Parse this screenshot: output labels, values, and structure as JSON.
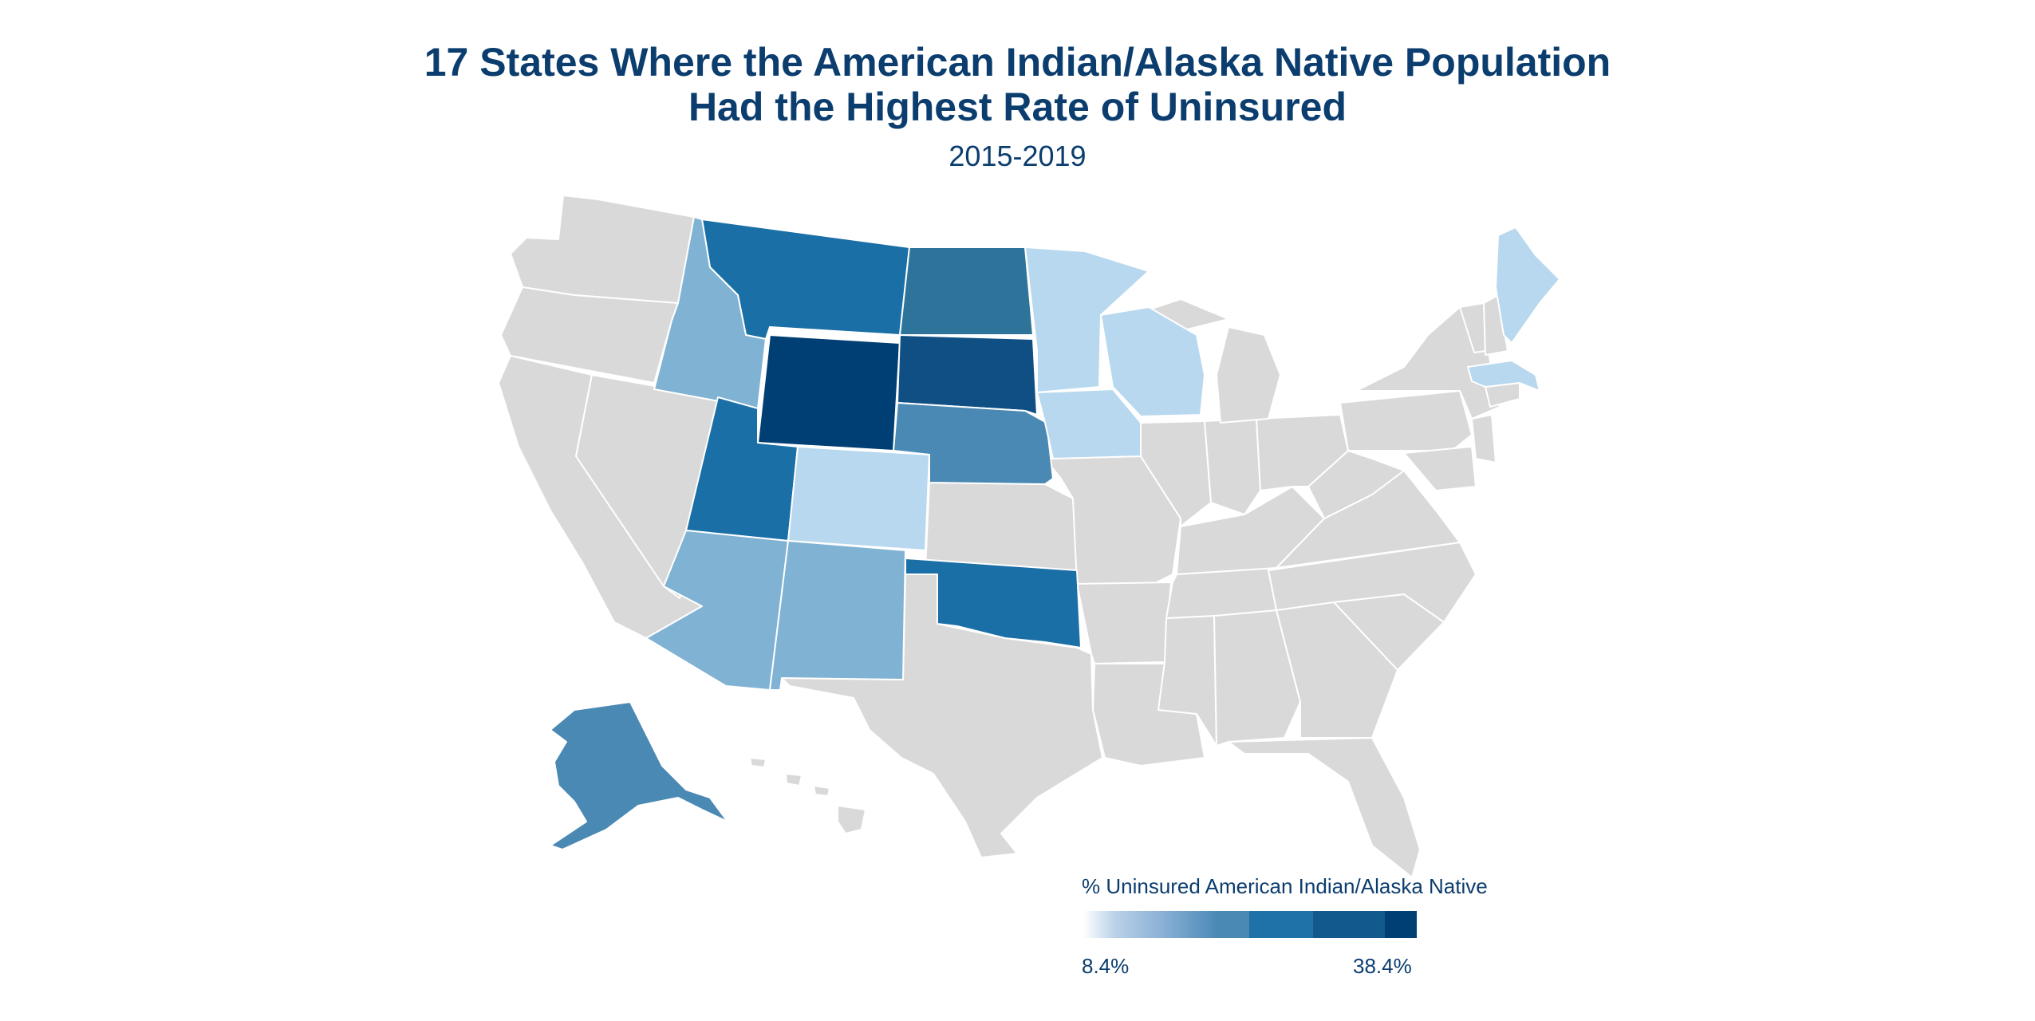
{
  "title_line1": "17 States Where the American Indian/Alaska Native Population",
  "title_line2": "Had the Highest Rate of Uninsured",
  "subtitle": "2015-2019",
  "legend": {
    "title": "% Uninsured American Indian/Alaska Native",
    "min_label": "8.4%",
    "max_label": "38.4%",
    "colors": [
      "#e8eef6",
      "#b9d1e8",
      "#86aed4",
      "#4b89b5",
      "#1e72a8",
      "#125a8d",
      "#003f74"
    ]
  },
  "colors": {
    "no_data": "#d9d9d9",
    "border": "#ffffff",
    "title": "#0b3d6e"
  },
  "map_data": {
    "highlighted_states": [
      {
        "state": "Wyoming",
        "shade": "#003f74"
      },
      {
        "state": "South Dakota",
        "shade": "#0f4f84"
      },
      {
        "state": "Montana",
        "shade": "#1a6fa6"
      },
      {
        "state": "Utah",
        "shade": "#1a6fa6"
      },
      {
        "state": "Oklahoma",
        "shade": "#1a6fa6"
      },
      {
        "state": "North Dakota",
        "shade": "#2e7399"
      },
      {
        "state": "Nebraska",
        "shade": "#4a89b3"
      },
      {
        "state": "Alaska",
        "shade": "#4a89b3"
      },
      {
        "state": "Idaho",
        "shade": "#80b2d3"
      },
      {
        "state": "Arizona",
        "shade": "#80b2d3"
      },
      {
        "state": "New Mexico",
        "shade": "#80b2d3"
      },
      {
        "state": "Colorado",
        "shade": "#b7d8ee"
      },
      {
        "state": "Minnesota",
        "shade": "#b7d8ee"
      },
      {
        "state": "Wisconsin",
        "shade": "#b7d8ee"
      },
      {
        "state": "Iowa",
        "shade": "#b7d8ee"
      },
      {
        "state": "Maine",
        "shade": "#b7d8ee"
      },
      {
        "state": "Massachusetts",
        "shade": "#b7d8ee"
      }
    ]
  }
}
